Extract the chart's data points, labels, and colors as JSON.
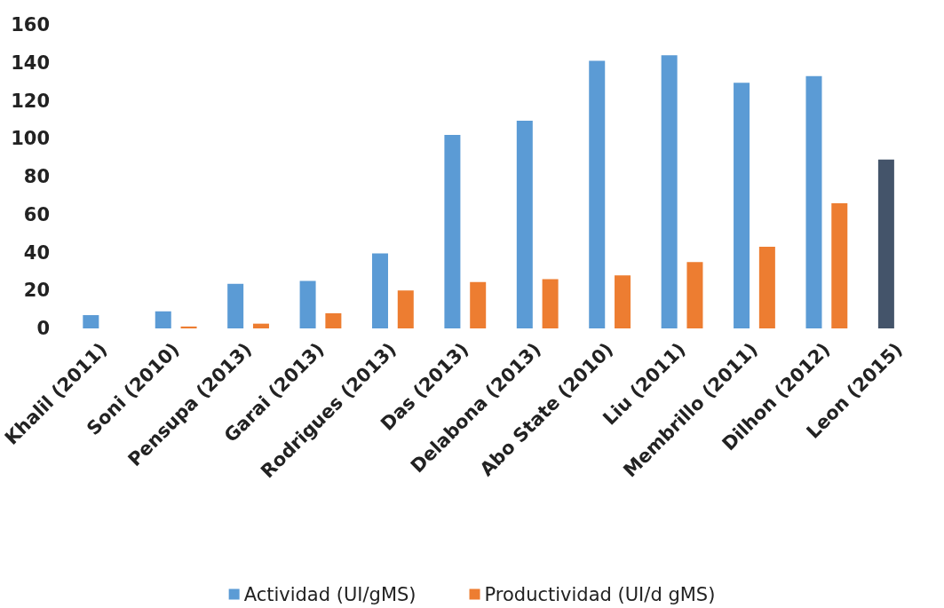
{
  "chart_data": {
    "type": "bar",
    "categories": [
      "Khalil (2011)",
      "Soni (2010)",
      "Pensupa (2013)",
      "Garai (2013)",
      "Rodrigues (2013)",
      "Das (2013)",
      "Delabona (2013)",
      "Abo State (2010)",
      "Liu (2011)",
      "Membrillo (2011)",
      "Dilhon (2012)",
      "Leon (2015)"
    ],
    "series": [
      {
        "name": "Actividad (UI/gMS)",
        "color": "#5b9bd5",
        "colors": [
          "#5b9bd5",
          "#5b9bd5",
          "#5b9bd5",
          "#5b9bd5",
          "#5b9bd5",
          "#5b9bd5",
          "#5b9bd5",
          "#5b9bd5",
          "#5b9bd5",
          "#5b9bd5",
          "#5b9bd5",
          "#44546a"
        ],
        "values": [
          7,
          9,
          23.5,
          25,
          39.5,
          102,
          109.5,
          141,
          144,
          129.5,
          133,
          89
        ]
      },
      {
        "name": "Productividad (UI/d gMS)",
        "color": "#ed7d31",
        "values": [
          null,
          1,
          2.5,
          8,
          20,
          24.5,
          26,
          28,
          35,
          43,
          66,
          null
        ]
      }
    ],
    "ylim": [
      0,
      160
    ],
    "yticks": [
      0,
      20,
      40,
      60,
      80,
      100,
      120,
      140,
      160
    ],
    "grid": false,
    "legend": "bottom"
  }
}
